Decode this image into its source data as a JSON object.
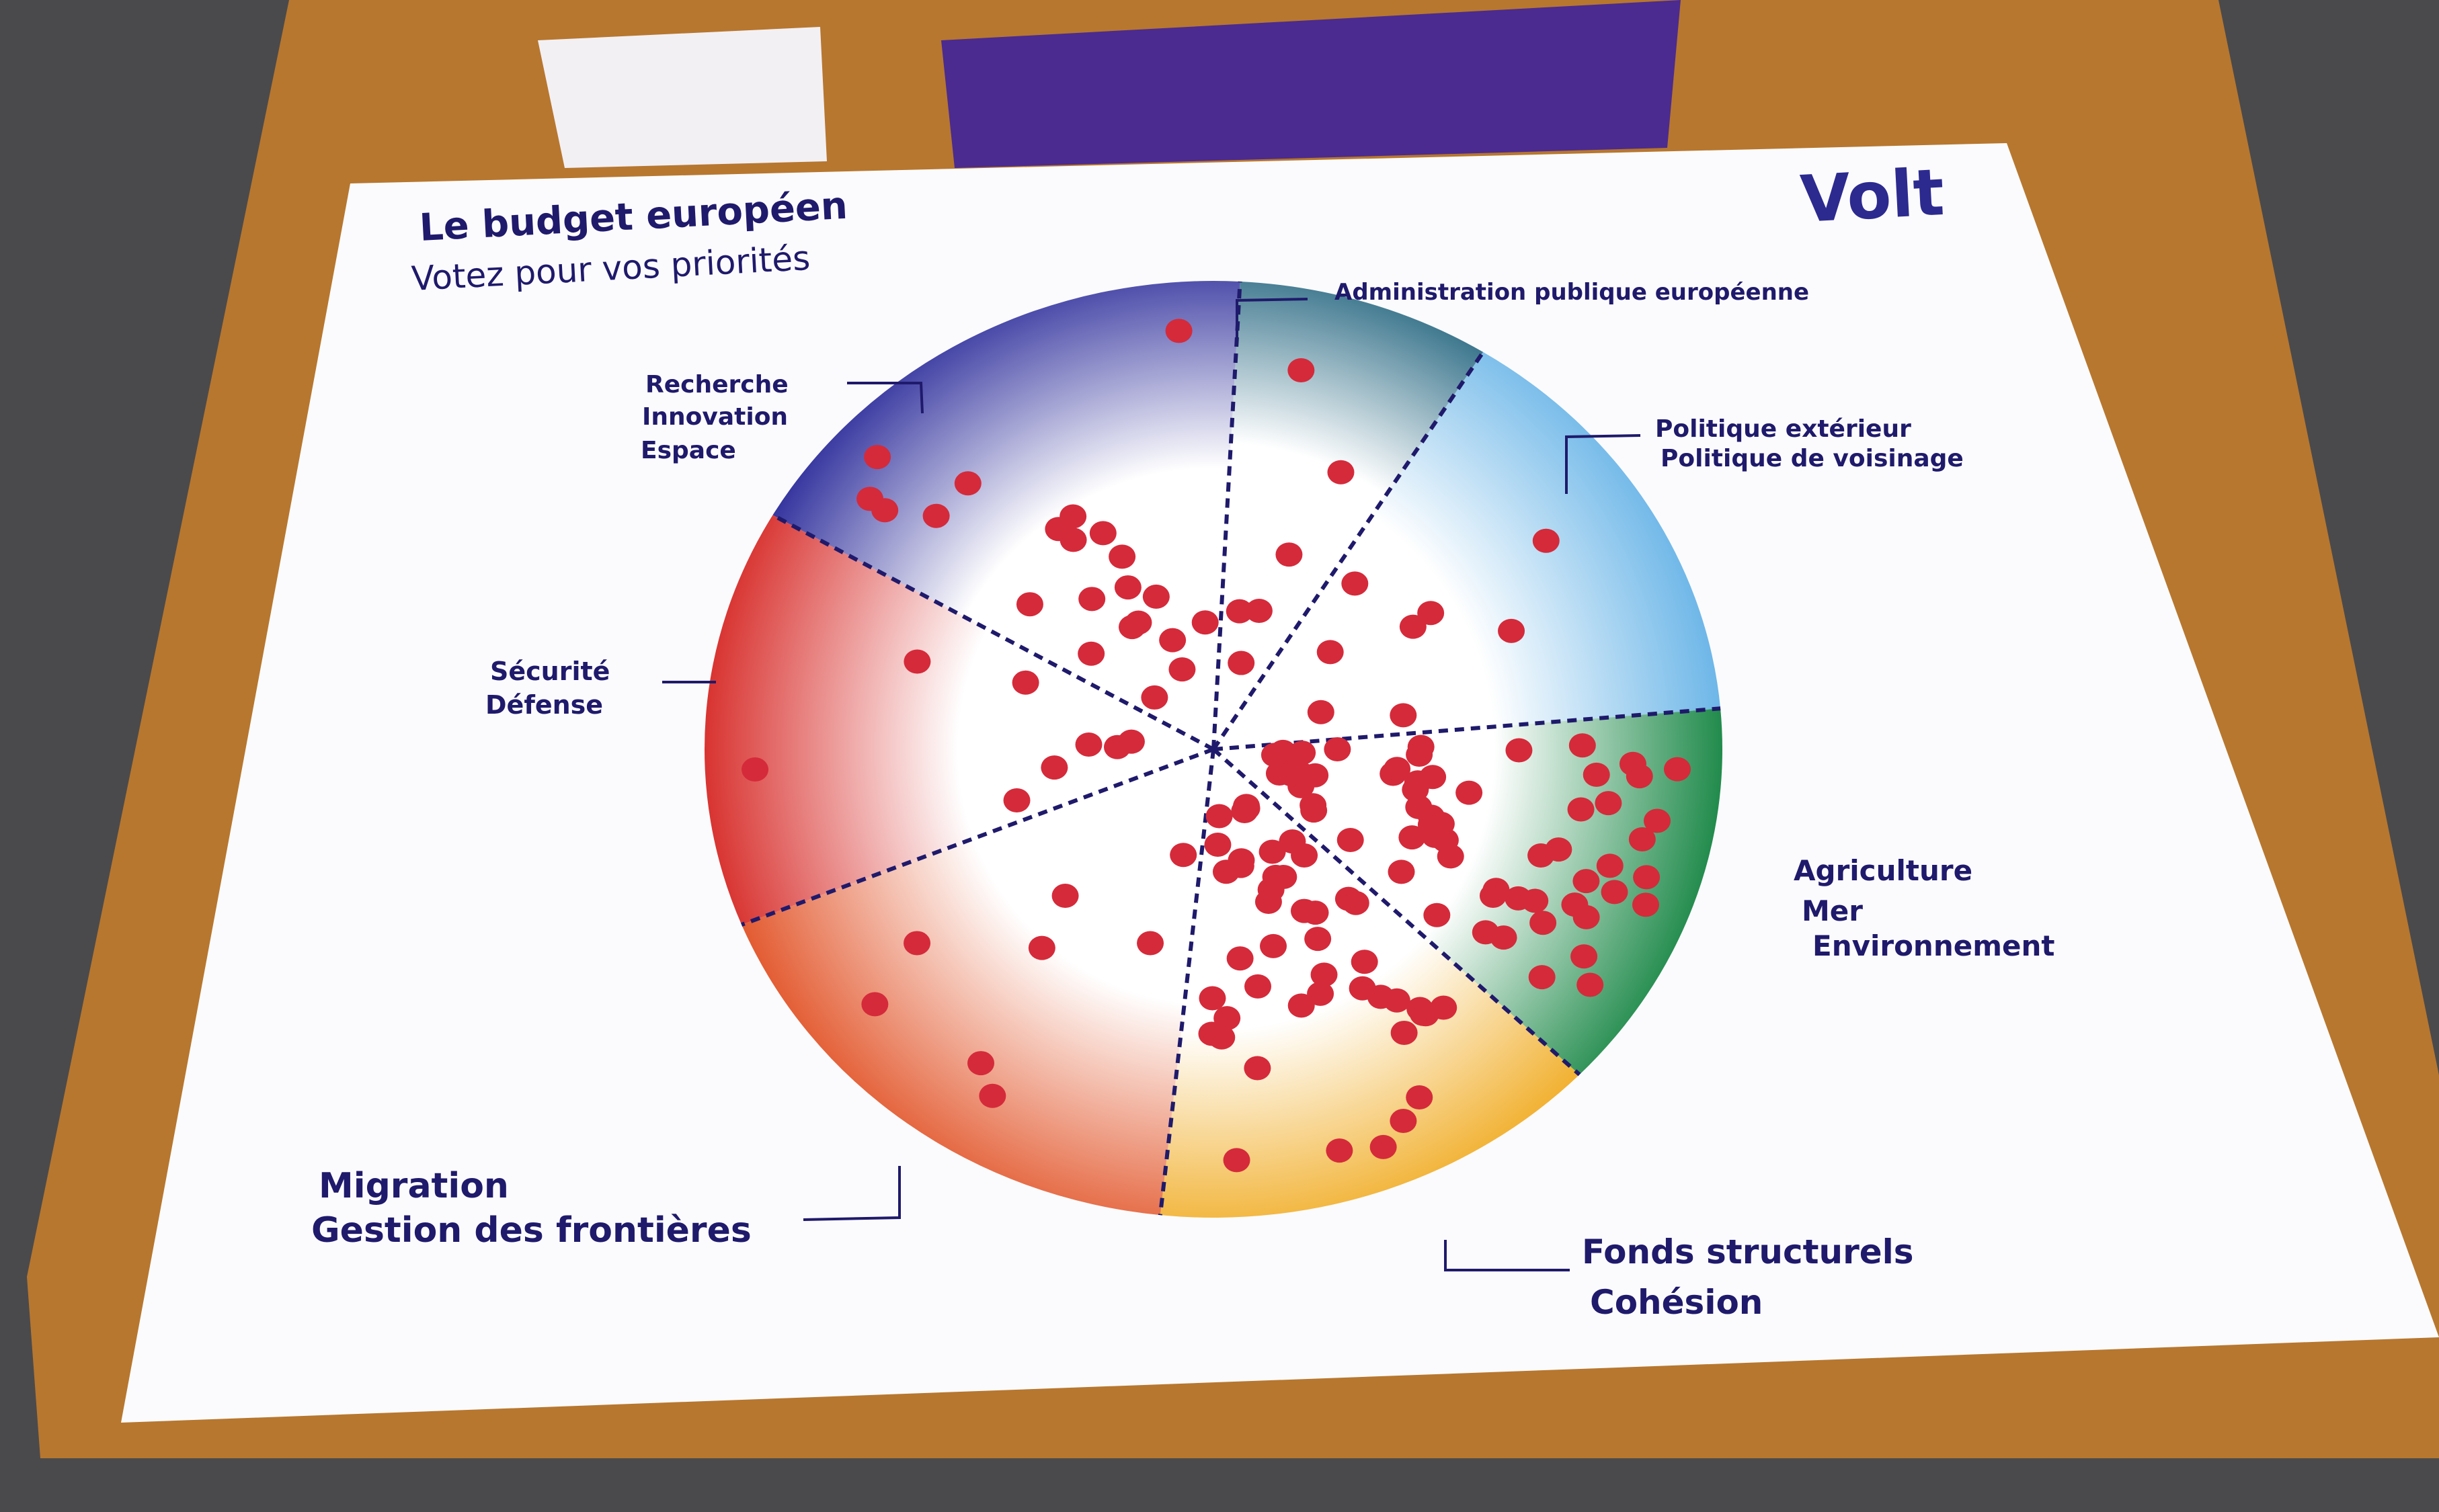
{
  "poster": {
    "title": "Le budget européen",
    "subtitle": "Votez pour vos priorités",
    "logo": "Volt",
    "segments": [
      {
        "label": [
          "Recherche",
          "Innovation",
          "Espace"
        ]
      },
      {
        "label": [
          "Administration publique européenne"
        ]
      },
      {
        "label": [
          "Politique extérieur",
          "Politique de voisinage"
        ]
      },
      {
        "label": [
          "Agriculture",
          "Mer",
          "Environnement"
        ]
      },
      {
        "label": [
          "Fonds structurels",
          "Cohésion"
        ]
      },
      {
        "label": [
          "Migration",
          "Gestion des frontières"
        ]
      },
      {
        "label": [
          "Sécurité",
          "Défense"
        ]
      }
    ]
  }
}
